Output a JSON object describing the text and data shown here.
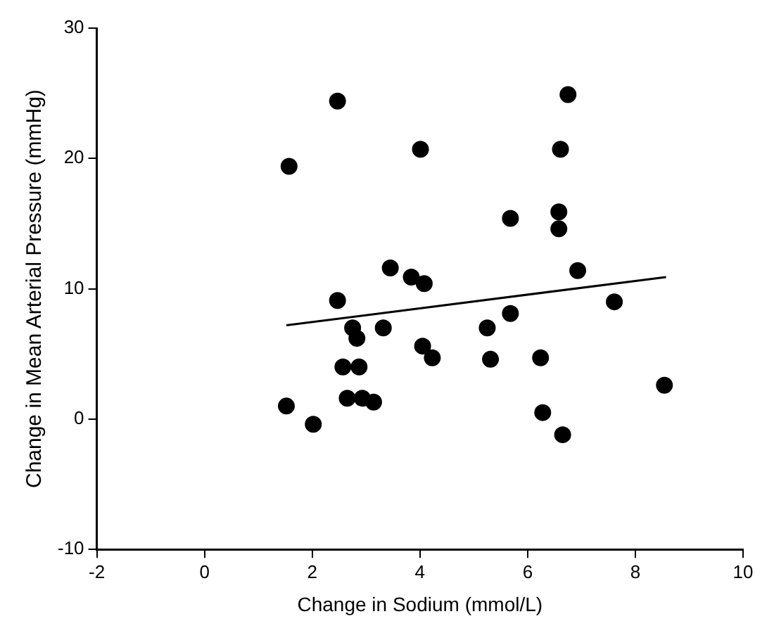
{
  "chart_data": {
    "type": "scatter",
    "xlabel": "Change in Sodium (mmol/L)",
    "ylabel": "Change in Mean Arterial Pressure (mmHg)",
    "xlim": [
      -2,
      10
    ],
    "ylim": [
      -10,
      30
    ],
    "xticks": [
      -2,
      0,
      2,
      4,
      6,
      8,
      10
    ],
    "yticks": [
      -10,
      0,
      10,
      20,
      30
    ],
    "grid": false,
    "legend": false,
    "marker": "circle",
    "series": [
      {
        "color": "#000000",
        "x": [
          1.57,
          2.47,
          2.47,
          1.52,
          2.02,
          2.75,
          2.83,
          2.57,
          2.87,
          2.65,
          2.93,
          3.14,
          6.75,
          4.01,
          6.61,
          5.68,
          6.58,
          6.58,
          3.45,
          3.84,
          4.08,
          6.93,
          7.61,
          3.32,
          5.25,
          5.68,
          4.05,
          4.23,
          5.31,
          6.24,
          8.54,
          6.28,
          6.65
        ],
        "values": [
          19.4,
          24.4,
          9.1,
          1.0,
          -0.4,
          7.0,
          6.2,
          4.0,
          4.0,
          1.6,
          1.6,
          1.3,
          24.9,
          20.7,
          20.7,
          15.4,
          15.9,
          14.6,
          11.6,
          10.9,
          10.4,
          11.4,
          9.0,
          7.0,
          7.0,
          8.1,
          5.6,
          4.7,
          4.6,
          4.7,
          2.6,
          0.5,
          -1.2
        ]
      },
      {
        "type": "line",
        "color": "#000000",
        "marker": "none",
        "x": [
          1.52,
          8.57
        ],
        "values": [
          7.2,
          10.9
        ]
      }
    ]
  }
}
